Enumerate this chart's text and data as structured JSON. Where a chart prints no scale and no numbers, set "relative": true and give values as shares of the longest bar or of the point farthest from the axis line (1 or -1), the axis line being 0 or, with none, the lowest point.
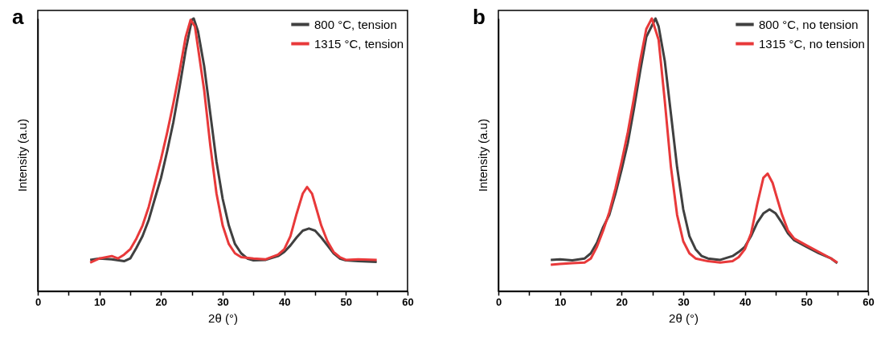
{
  "chart_data": [
    {
      "type": "line",
      "title": "a",
      "xlabel": "2θ (°)",
      "ylabel": "Intensity (a.u)",
      "relative": true,
      "legend": "top right",
      "xlim": [
        0,
        60
      ],
      "xticks": [
        0,
        {
          "value": 5,
          "label": null
        },
        10,
        {
          "value": 15,
          "label": null
        },
        20,
        {
          "value": 25,
          "label": null
        },
        30,
        {
          "value": 35,
          "label": null
        },
        40,
        {
          "value": 45,
          "label": null
        },
        50,
        {
          "value": 55,
          "label": null
        },
        60
      ],
      "series": [
        {
          "name": "800 °C, tension",
          "color": "#404040",
          "x": [
            8.5,
            10,
            12,
            14,
            15,
            16,
            17,
            18,
            19,
            20,
            21,
            22,
            23,
            24,
            25,
            25.3,
            26,
            27,
            28,
            29,
            30,
            31,
            32,
            33,
            34,
            35,
            37,
            39,
            40,
            41,
            42,
            43,
            44,
            45,
            46,
            47,
            48,
            49,
            50,
            52,
            55
          ],
          "values": [
            0.115,
            0.12,
            0.117,
            0.11,
            0.12,
            0.159,
            0.202,
            0.261,
            0.339,
            0.416,
            0.514,
            0.62,
            0.747,
            0.883,
            0.995,
            1,
            0.953,
            0.825,
            0.65,
            0.475,
            0.339,
            0.241,
            0.173,
            0.139,
            0.12,
            0.113,
            0.115,
            0.129,
            0.144,
            0.168,
            0.197,
            0.222,
            0.23,
            0.222,
            0.197,
            0.168,
            0.139,
            0.12,
            0.113,
            0.11,
            0.107
          ]
        },
        {
          "name": "1315 °C, tension",
          "color": "#e8393a",
          "x": [
            8.5,
            10,
            12,
            13,
            14,
            15,
            16,
            17,
            18,
            19,
            20,
            21,
            22,
            23,
            24,
            24.8,
            25.5,
            26,
            27,
            28,
            29,
            30,
            31,
            32,
            33,
            35,
            37,
            39,
            40,
            41,
            42,
            43,
            43.7,
            44.5,
            45,
            46,
            47,
            48,
            49,
            50,
            52,
            55
          ],
          "values": [
            0.105,
            0.12,
            0.129,
            0.12,
            0.134,
            0.154,
            0.193,
            0.241,
            0.309,
            0.397,
            0.485,
            0.582,
            0.689,
            0.805,
            0.932,
            0.995,
            0.971,
            0.893,
            0.737,
            0.533,
            0.358,
            0.241,
            0.173,
            0.139,
            0.125,
            0.12,
            0.117,
            0.134,
            0.154,
            0.202,
            0.284,
            0.358,
            0.382,
            0.358,
            0.319,
            0.241,
            0.183,
            0.144,
            0.125,
            0.115,
            0.117,
            0.115
          ]
        }
      ]
    },
    {
      "type": "line",
      "title": "b",
      "xlabel": "2θ (°)",
      "ylabel": "Intensity (a.u)",
      "relative": true,
      "legend": "top right",
      "xlim": [
        0,
        60
      ],
      "xticks": [
        0,
        {
          "value": 5,
          "label": null
        },
        10,
        {
          "value": 15,
          "label": null
        },
        20,
        {
          "value": 25,
          "label": null
        },
        30,
        {
          "value": 35,
          "label": null
        },
        40,
        {
          "value": 45,
          "label": null
        },
        50,
        {
          "value": 55,
          "label": null
        },
        60
      ],
      "series": [
        {
          "name": "800 °C, no tension",
          "color": "#404040",
          "x": [
            8.5,
            10,
            12,
            14,
            15,
            16,
            17,
            18,
            19,
            20,
            21,
            22,
            23,
            24,
            25.5,
            26,
            27,
            28,
            29,
            30,
            31,
            32,
            33,
            34,
            36,
            38,
            39,
            40,
            41,
            42,
            43,
            44,
            45,
            46,
            47,
            48,
            50,
            52,
            54,
            55
          ],
          "values": [
            0.115,
            0.117,
            0.113,
            0.12,
            0.139,
            0.178,
            0.235,
            0.28,
            0.358,
            0.446,
            0.543,
            0.669,
            0.805,
            0.932,
            1,
            0.971,
            0.844,
            0.65,
            0.455,
            0.3,
            0.202,
            0.154,
            0.129,
            0.12,
            0.115,
            0.129,
            0.144,
            0.163,
            0.202,
            0.251,
            0.285,
            0.3,
            0.285,
            0.251,
            0.212,
            0.187,
            0.163,
            0.139,
            0.12,
            0.103
          ]
        },
        {
          "name": "1315 °C, no tension",
          "color": "#e8393a",
          "x": [
            8.5,
            10,
            12,
            14,
            15,
            16,
            17,
            18,
            19,
            20,
            21,
            22,
            23,
            24,
            24.9,
            26,
            27,
            28,
            29,
            30,
            31,
            32,
            34,
            36,
            38,
            39,
            40,
            41,
            42,
            43,
            43.7,
            44.5,
            45,
            46,
            47,
            48,
            50,
            52,
            54,
            55
          ],
          "values": [
            0.097,
            0.1,
            0.103,
            0.105,
            0.12,
            0.163,
            0.222,
            0.29,
            0.377,
            0.475,
            0.582,
            0.708,
            0.844,
            0.961,
            1,
            0.922,
            0.698,
            0.455,
            0.28,
            0.183,
            0.139,
            0.12,
            0.11,
            0.105,
            0.11,
            0.125,
            0.154,
            0.212,
            0.319,
            0.416,
            0.431,
            0.397,
            0.358,
            0.282,
            0.222,
            0.193,
            0.168,
            0.144,
            0.12,
            0.105
          ]
        }
      ]
    }
  ]
}
